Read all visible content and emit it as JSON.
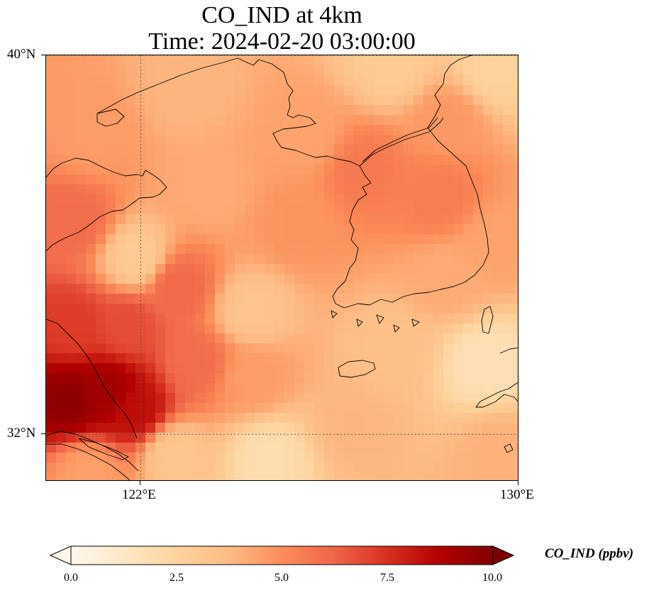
{
  "title": {
    "line1": "CO_IND at 4km",
    "line2": "Time: 2024-02-20 03:00:00"
  },
  "axes": {
    "lat_ticks": [
      {
        "label": "40°N",
        "value": 40
      },
      {
        "label": "32°N",
        "value": 32
      }
    ],
    "lon_ticks": [
      {
        "label": "122°E",
        "value": 122
      },
      {
        "label": "130°E",
        "value": 130
      }
    ],
    "gridlines": "dotted"
  },
  "colorbar": {
    "label": "CO_IND (ppbv)",
    "colormap": "OrRd",
    "extend": "both",
    "min": 0.0,
    "max": 10.0,
    "ticks": [
      "0.0",
      "2.5",
      "5.0",
      "7.5",
      "10.0"
    ],
    "colors": [
      "#fff7ec",
      "#fee8c8",
      "#fdd49e",
      "#fdbb84",
      "#fc8d59",
      "#ef6548",
      "#d7301f",
      "#b30000",
      "#7f0000"
    ]
  },
  "chart_data": {
    "type": "heatmap",
    "variable": "CO_IND",
    "units": "ppbv",
    "level": "4km",
    "time": "2024-02-20 03:00:00",
    "lon_range": [
      120,
      130
    ],
    "lat_range": [
      31,
      40
    ],
    "vmin": 0,
    "vmax": 10,
    "features": "coastlines",
    "field_points": [
      {
        "lon": 120.5,
        "lat": 32.7,
        "value": 9.6
      },
      {
        "lon": 121.3,
        "lat": 32.9,
        "value": 9.2
      },
      {
        "lon": 121.9,
        "lat": 32.5,
        "value": 8.4
      },
      {
        "lon": 120.6,
        "lat": 34.3,
        "value": 7.2
      },
      {
        "lon": 121.7,
        "lat": 34.3,
        "value": 6.8
      },
      {
        "lon": 123.2,
        "lat": 33.5,
        "value": 6.0
      },
      {
        "lon": 122.8,
        "lat": 35.1,
        "value": 6.1
      },
      {
        "lon": 120.6,
        "lat": 36.5,
        "value": 6.0
      },
      {
        "lon": 121.9,
        "lat": 35.7,
        "value": 3.0
      },
      {
        "lon": 124.3,
        "lat": 34.6,
        "value": 3.3
      },
      {
        "lon": 126.7,
        "lat": 37.6,
        "value": 5.6
      },
      {
        "lon": 128.3,
        "lat": 37.0,
        "value": 5.5
      },
      {
        "lon": 125.3,
        "lat": 36.4,
        "value": 4.8
      },
      {
        "lon": 128.5,
        "lat": 38.6,
        "value": 4.7
      },
      {
        "lon": 123.5,
        "lat": 37.2,
        "value": 4.2
      },
      {
        "lon": 123.0,
        "lat": 39.3,
        "value": 3.9
      },
      {
        "lon": 129.5,
        "lat": 39.7,
        "value": 2.6
      },
      {
        "lon": 127.3,
        "lat": 39.8,
        "value": 3.0
      },
      {
        "lon": 129.3,
        "lat": 33.5,
        "value": 1.8
      },
      {
        "lon": 127.3,
        "lat": 33.8,
        "value": 3.5
      },
      {
        "lon": 126.5,
        "lat": 32.2,
        "value": 3.9
      },
      {
        "lon": 122.7,
        "lat": 31.6,
        "value": 3.2
      },
      {
        "lon": 124.7,
        "lat": 31.5,
        "value": 2.0
      },
      {
        "lon": 120.9,
        "lat": 31.2,
        "value": 4.5
      },
      {
        "lon": 121.0,
        "lat": 38.3,
        "value": 4.6
      },
      {
        "lon": 125.5,
        "lat": 38.3,
        "value": 4.4
      },
      {
        "lon": 129.6,
        "lat": 31.6,
        "value": 4.0
      },
      {
        "lon": 128.5,
        "lat": 35.3,
        "value": 4.2
      },
      {
        "lon": 124.3,
        "lat": 33.2,
        "value": 4.6
      },
      {
        "lon": 129.5,
        "lat": 36.0,
        "value": 4.4
      }
    ]
  }
}
